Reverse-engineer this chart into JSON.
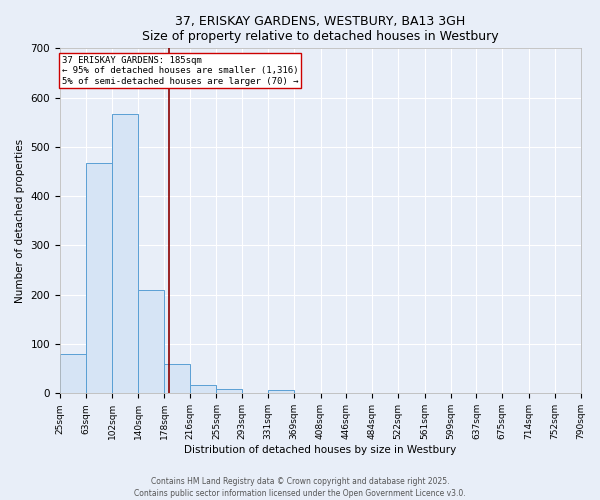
{
  "title_line1": "37, ERISKAY GARDENS, WESTBURY, BA13 3GH",
  "title_line2": "Size of property relative to detached houses in Westbury",
  "xlabel": "Distribution of detached houses by size in Westbury",
  "ylabel": "Number of detached properties",
  "bin_edges": [
    25,
    63,
    102,
    140,
    178,
    216,
    255,
    293,
    331,
    369,
    408,
    446,
    484,
    522,
    561,
    599,
    637,
    675,
    714,
    752,
    790
  ],
  "bin_counts": [
    80,
    467,
    567,
    209,
    60,
    16,
    8,
    0,
    7,
    0,
    0,
    0,
    0,
    0,
    0,
    0,
    0,
    0,
    0,
    0
  ],
  "bar_facecolor": "#d6e4f5",
  "bar_edgecolor": "#5a9fd4",
  "property_line_x": 185,
  "property_line_color": "#8b0000",
  "annotation_text_line1": "37 ERISKAY GARDENS: 185sqm",
  "annotation_text_line2": "← 95% of detached houses are smaller (1,316)",
  "annotation_text_line3": "5% of semi-detached houses are larger (70) →",
  "annotation_box_edgecolor": "#cc0000",
  "annotation_facecolor": "white",
  "ylim": [
    0,
    700
  ],
  "yticks": [
    0,
    100,
    200,
    300,
    400,
    500,
    600,
    700
  ],
  "background_color": "#e8eef8",
  "plot_background": "#e8eef8",
  "grid_color": "#ffffff",
  "footer_line1": "Contains HM Land Registry data © Crown copyright and database right 2025.",
  "footer_line2": "Contains public sector information licensed under the Open Government Licence v3.0.",
  "tick_labels": [
    "25sqm",
    "63sqm",
    "102sqm",
    "140sqm",
    "178sqm",
    "216sqm",
    "255sqm",
    "293sqm",
    "331sqm",
    "369sqm",
    "408sqm",
    "446sqm",
    "484sqm",
    "522sqm",
    "561sqm",
    "599sqm",
    "637sqm",
    "675sqm",
    "714sqm",
    "752sqm",
    "790sqm"
  ]
}
